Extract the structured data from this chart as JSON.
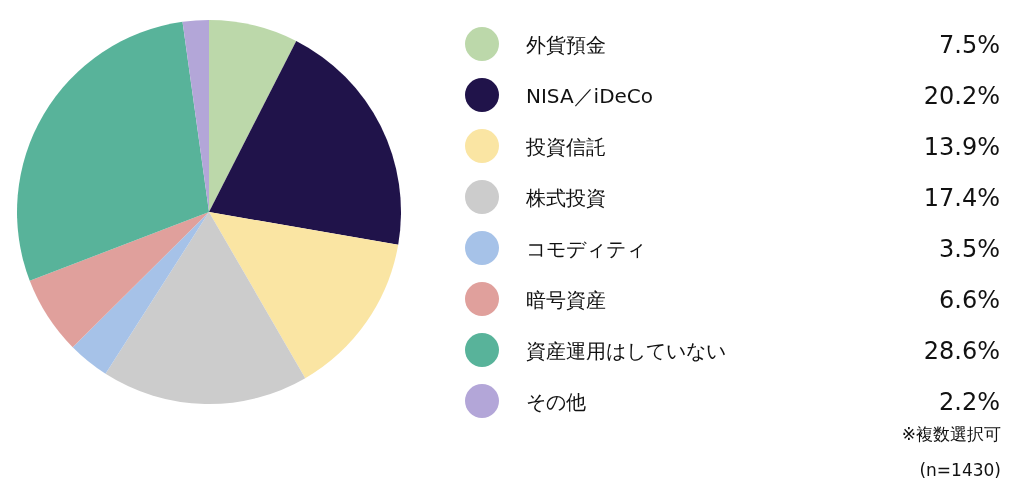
{
  "chart_data": {
    "type": "pie",
    "categories": [
      "外貨預金",
      "NISA／iDeCo",
      "投資信託",
      "株式投資",
      "コモディティ",
      "暗号資産",
      "資産運用はしていない",
      "その他"
    ],
    "values": [
      7.5,
      20.2,
      13.9,
      17.4,
      3.5,
      6.6,
      28.6,
      2.2
    ],
    "colors": [
      "#bcd8aa",
      "#20134a",
      "#fae5a3",
      "#cccccc",
      "#a6c2e8",
      "#e0a09c",
      "#58b39a",
      "#b3a6d8"
    ],
    "value_labels": [
      "7.5%",
      "20.2%",
      "13.9%",
      "17.4%",
      "3.5%",
      "6.6%",
      "28.6%",
      "2.2%"
    ],
    "legend": "right",
    "annotations": [
      "※複数選択可",
      "(n=1430)"
    ]
  }
}
